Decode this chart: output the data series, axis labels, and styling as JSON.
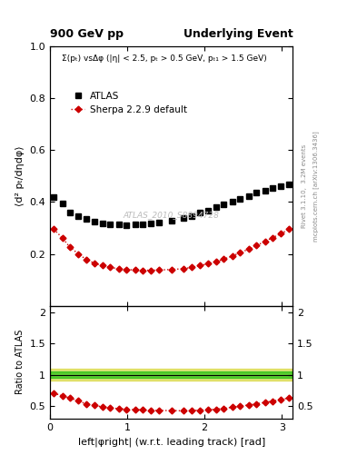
{
  "title_left": "900 GeV pp",
  "title_right": "Underlying Event",
  "annotation": "ATLAS_2010_S8894728",
  "right_label": "Rivet 3.1.10,  3.2M events",
  "right_label2": "mcplots.cern.ch [arXiv:1306.3436]",
  "description": "Σ(pₜ) vsΔφ (|η| < 2.5, pₜ > 0.5 GeV, pₜ₁ > 1.5 GeV)",
  "xlabel": "left|φright| (w.r.t. leading track) [rad]",
  "ylabel_main": "⟨d² pₜ/dηdφ⟩",
  "ylabel_ratio": "Ratio to ATLAS",
  "xlim": [
    0,
    3.14159
  ],
  "ylim_main": [
    0,
    1.0
  ],
  "ylim_ratio": [
    0.3,
    2.1
  ],
  "atlas_x": [
    0.05,
    0.16,
    0.26,
    0.37,
    0.47,
    0.57,
    0.68,
    0.78,
    0.89,
    0.99,
    1.1,
    1.2,
    1.31,
    1.41,
    1.57,
    1.73,
    1.83,
    1.94,
    2.04,
    2.15,
    2.25,
    2.36,
    2.46,
    2.57,
    2.67,
    2.78,
    2.88,
    2.99,
    3.09
  ],
  "atlas_y": [
    0.42,
    0.395,
    0.36,
    0.345,
    0.335,
    0.325,
    0.318,
    0.315,
    0.313,
    0.312,
    0.313,
    0.315,
    0.318,
    0.322,
    0.328,
    0.338,
    0.345,
    0.358,
    0.368,
    0.38,
    0.39,
    0.4,
    0.413,
    0.423,
    0.435,
    0.445,
    0.455,
    0.462,
    0.467
  ],
  "sherpa_x": [
    0.05,
    0.16,
    0.26,
    0.37,
    0.47,
    0.57,
    0.68,
    0.78,
    0.89,
    0.99,
    1.1,
    1.2,
    1.31,
    1.41,
    1.57,
    1.73,
    1.83,
    1.94,
    2.04,
    2.15,
    2.25,
    2.36,
    2.46,
    2.57,
    2.67,
    2.78,
    2.88,
    2.99,
    3.09
  ],
  "sherpa_y": [
    0.295,
    0.262,
    0.225,
    0.2,
    0.178,
    0.165,
    0.155,
    0.148,
    0.143,
    0.14,
    0.138,
    0.137,
    0.137,
    0.138,
    0.14,
    0.143,
    0.148,
    0.155,
    0.162,
    0.17,
    0.18,
    0.192,
    0.205,
    0.218,
    0.232,
    0.248,
    0.263,
    0.278,
    0.295
  ],
  "ratio_x": [
    0.05,
    0.16,
    0.26,
    0.37,
    0.47,
    0.57,
    0.68,
    0.78,
    0.89,
    0.99,
    1.1,
    1.2,
    1.31,
    1.41,
    1.57,
    1.73,
    1.83,
    1.94,
    2.04,
    2.15,
    2.25,
    2.36,
    2.46,
    2.57,
    2.67,
    2.78,
    2.88,
    2.99,
    3.09
  ],
  "ratio_y": [
    0.702,
    0.664,
    0.625,
    0.58,
    0.531,
    0.508,
    0.487,
    0.47,
    0.457,
    0.449,
    0.441,
    0.435,
    0.431,
    0.428,
    0.427,
    0.423,
    0.429,
    0.433,
    0.44,
    0.447,
    0.462,
    0.48,
    0.497,
    0.515,
    0.533,
    0.557,
    0.578,
    0.601,
    0.631
  ],
  "atlas_color": "#000000",
  "sherpa_color": "#cc0000",
  "main_yticks": [
    0.2,
    0.4,
    0.6,
    0.8,
    1.0
  ],
  "ratio_yticks": [
    0.5,
    1.0,
    1.5,
    2.0
  ],
  "main_xticks": [
    0,
    1,
    2,
    3
  ]
}
